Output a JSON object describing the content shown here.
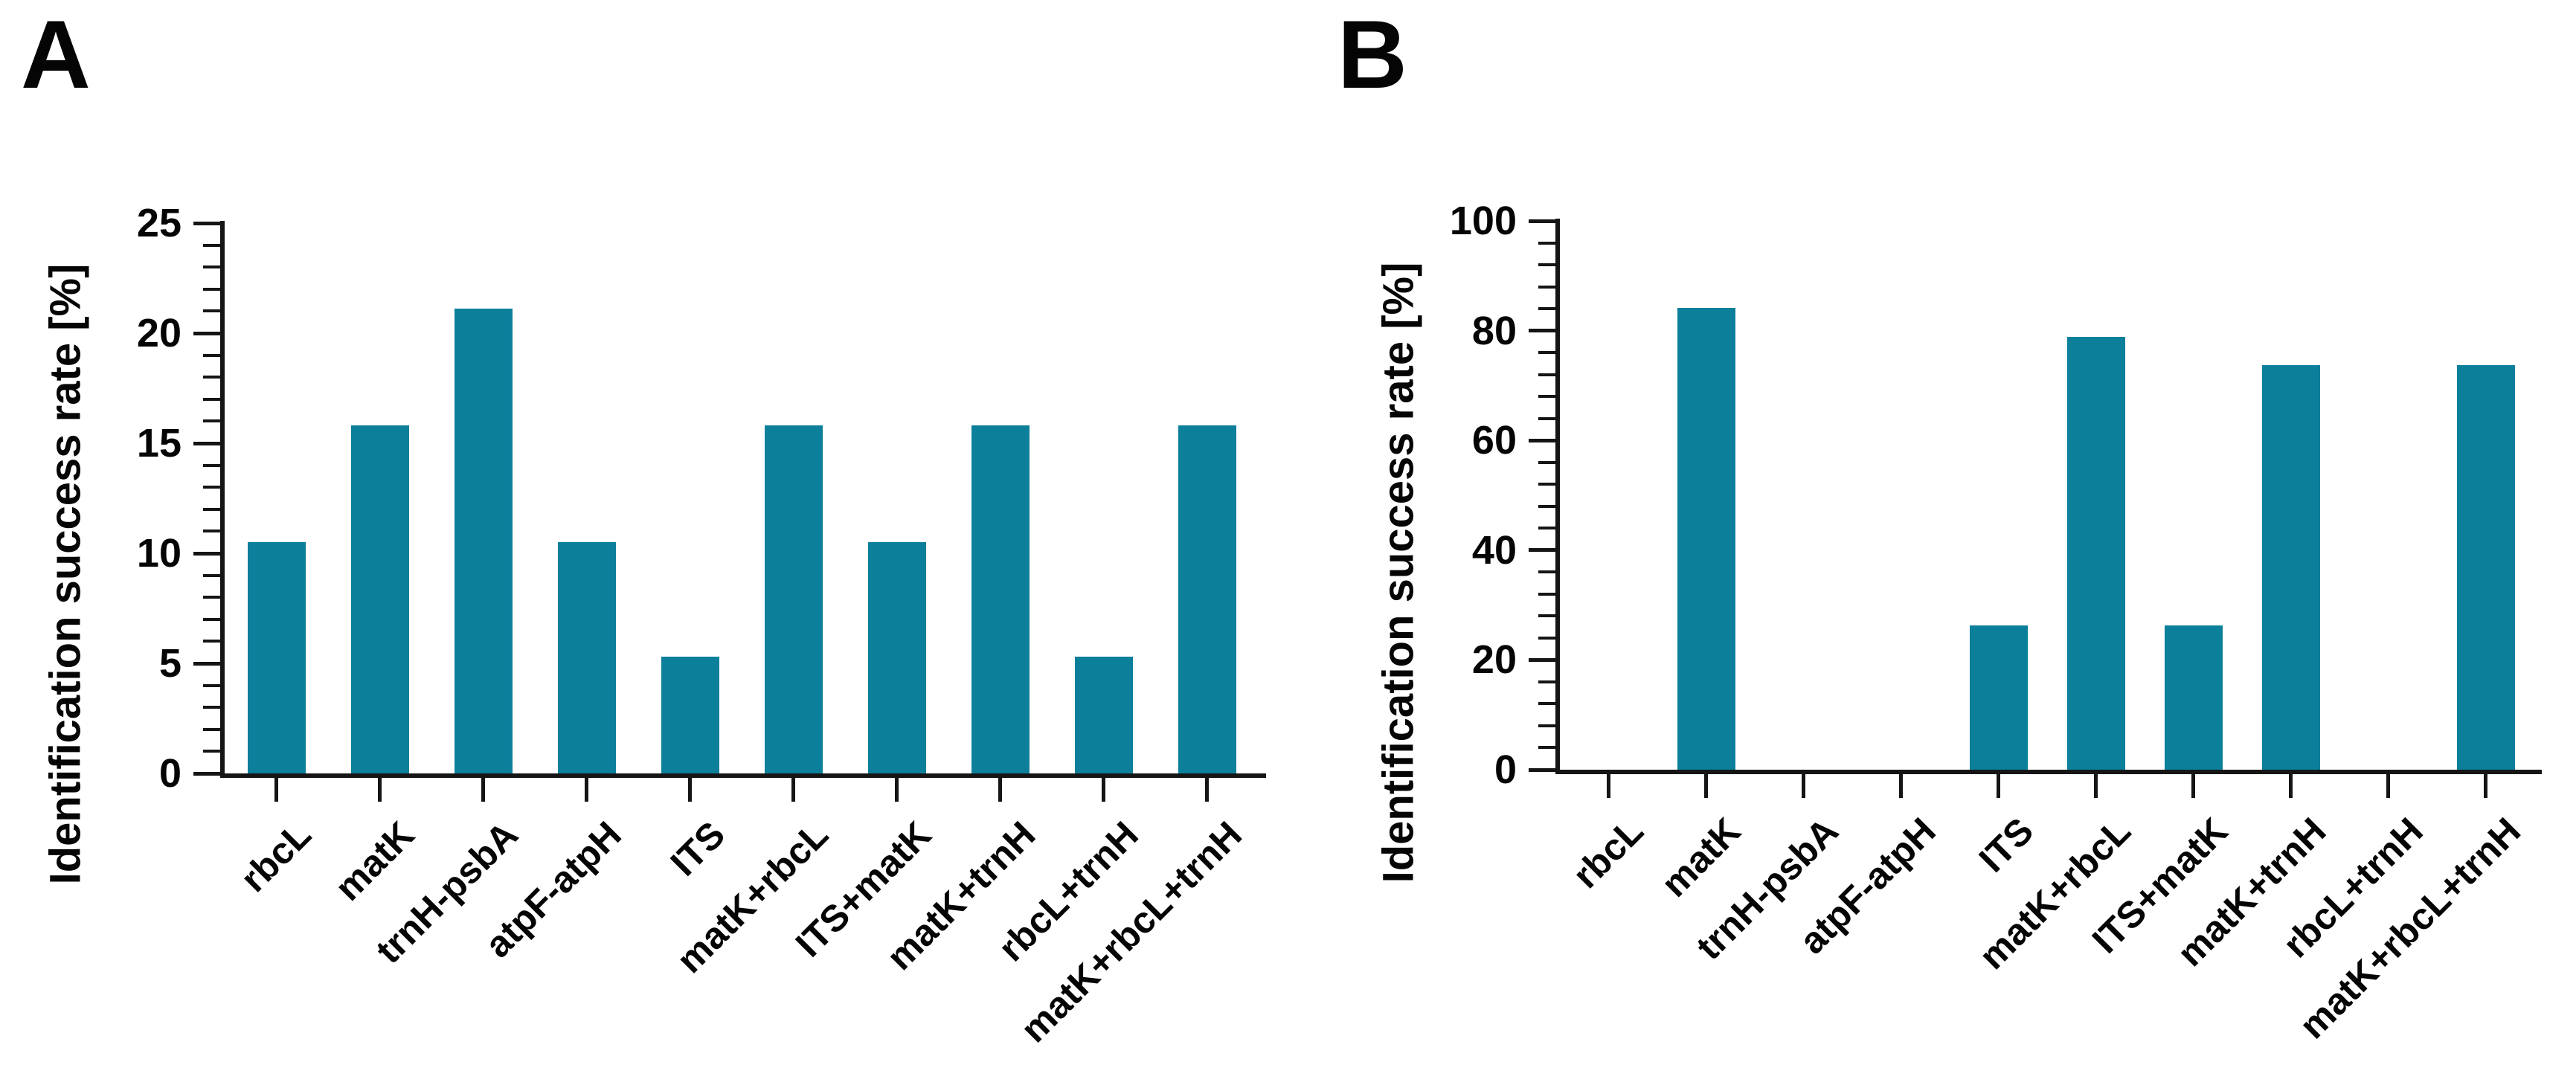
{
  "figure": {
    "background_color": "#ffffff",
    "axis_color": "#151515",
    "text_color": "#050505"
  },
  "chart_data": [
    {
      "panel": "A",
      "type": "bar",
      "title": "",
      "xlabel": "",
      "ylabel": "Identification success rate [%]",
      "categories": [
        "rbcL",
        "matK",
        "trnH-psbA",
        "atpF-atpH",
        "ITS",
        "matK+rbcL",
        "ITS+matK",
        "matK+trnH",
        "rbcL+trnH",
        "matK+rbcL+trnH"
      ],
      "values": [
        10.5,
        15.8,
        21.1,
        10.5,
        5.3,
        15.8,
        10.5,
        15.8,
        5.3,
        15.8
      ],
      "ylim": [
        0,
        25
      ],
      "ytick_step": 5,
      "yminor_step": 1,
      "ytick_labels": [
        "0",
        "5",
        "10",
        "15",
        "20",
        "25"
      ],
      "grid": false,
      "legend": "none",
      "bar_color": "#0c7f9b",
      "x_label_rotation_deg": 45
    },
    {
      "panel": "B",
      "type": "bar",
      "title": "",
      "xlabel": "",
      "ylabel": "Identification success rate [%]",
      "categories": [
        "rbcL",
        "matK",
        "trnH-psbA",
        "atpF-atpH",
        "ITS",
        "matK+rbcL",
        "ITS+matK",
        "matK+trnH",
        "rbcL+trnH",
        "matK+rbcL+trnH"
      ],
      "values": [
        0,
        84.2,
        0,
        0,
        26.3,
        78.9,
        26.3,
        73.7,
        0,
        73.7
      ],
      "ylim": [
        0,
        100
      ],
      "ytick_step": 20,
      "yminor_step": 4,
      "ytick_labels": [
        "0",
        "20",
        "40",
        "60",
        "80",
        "100"
      ],
      "grid": false,
      "legend": "none",
      "bar_color": "#0c7f9b",
      "x_label_rotation_deg": 45
    }
  ]
}
